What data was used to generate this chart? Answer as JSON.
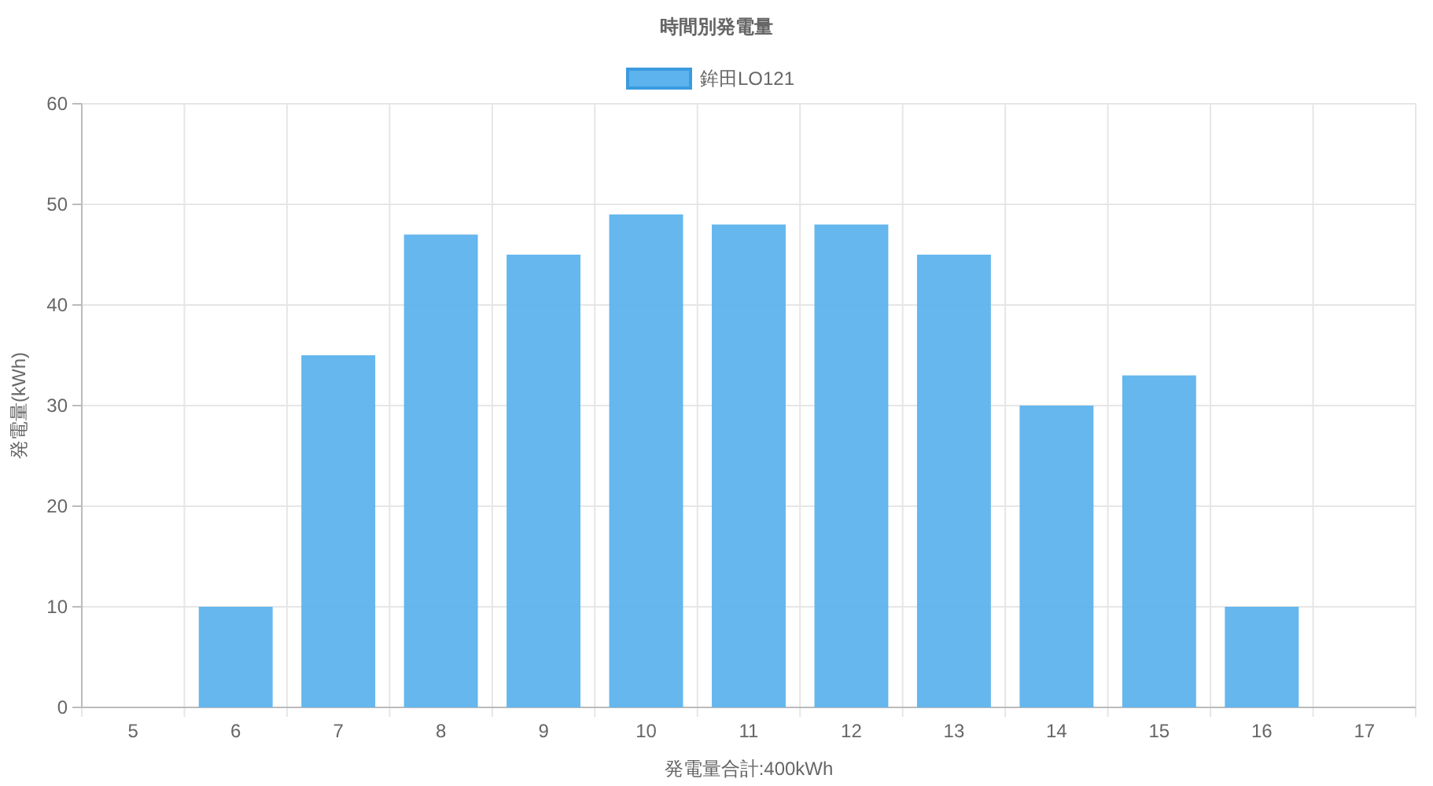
{
  "chart_data": {
    "type": "bar",
    "title": "時間別発電量",
    "xlabel": "発電量合計:400kWh",
    "ylabel": "発電量(kWh)",
    "categories": [
      "5",
      "6",
      "7",
      "8",
      "9",
      "10",
      "11",
      "12",
      "13",
      "14",
      "15",
      "16",
      "17"
    ],
    "series": [
      {
        "name": "鉾田LO121",
        "color": "#5db3ed",
        "values": [
          0,
          10,
          35,
          47,
          45,
          49,
          48,
          48,
          45,
          30,
          33,
          10,
          0
        ]
      }
    ],
    "ylim": [
      0,
      60
    ],
    "yticks": [
      0,
      10,
      20,
      30,
      40,
      50,
      60
    ],
    "grid": true,
    "legend": "top"
  }
}
